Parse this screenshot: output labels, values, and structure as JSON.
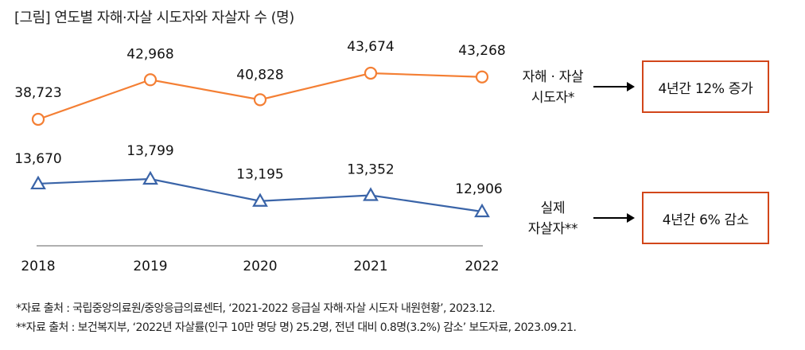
{
  "title": "[그림] 연도별 자해·자살 시도자와 자살자 수 (명)",
  "chart_data": {
    "type": "line",
    "title": "[그림] 연도별 자해·자살 시도자와 자살자 수 (명)",
    "xlabel": "",
    "ylabel": "명",
    "categories": [
      "2018",
      "2019",
      "2020",
      "2021",
      "2022"
    ],
    "series": [
      {
        "name": "자해·자살 시도자*",
        "color": "#f47f34",
        "marker": "circle",
        "values": [
          38723,
          42968,
          40828,
          43674,
          43268
        ],
        "labels": [
          "38,723",
          "42,968",
          "40,828",
          "43,674",
          "43,268"
        ]
      },
      {
        "name": "실제 자살자**",
        "color": "#3a64a8",
        "marker": "triangle",
        "values": [
          13670,
          13799,
          13195,
          13352,
          12906
        ],
        "labels": [
          "13,670",
          "13,799",
          "13,195",
          "13,352",
          "12,906"
        ]
      }
    ],
    "grid": false,
    "axis_color": "#b0b0b0"
  },
  "annotations": [
    {
      "label_line1": "자해 · 자살",
      "label_line2": "시도자*",
      "callout": "4년간 12% 증가"
    },
    {
      "label_line1": "실제",
      "label_line2": "자살자**",
      "callout": "4년간 6% 감소"
    }
  ],
  "callout_border_color": "#d2461a",
  "notes": [
    "*자료 출처 : 국립중앙의료원/중앙응급의료센터, ‘2021-2022 응급실 자해·자살 시도자 내원현황’, 2023.12.",
    "**자료 출처 : 보건복지부, ‘2022년 자살률(인구 10만 명당 명) 25.2명, 전년 대비 0.8명(3.2%) 감소’ 보도자료, 2023.09.21."
  ]
}
